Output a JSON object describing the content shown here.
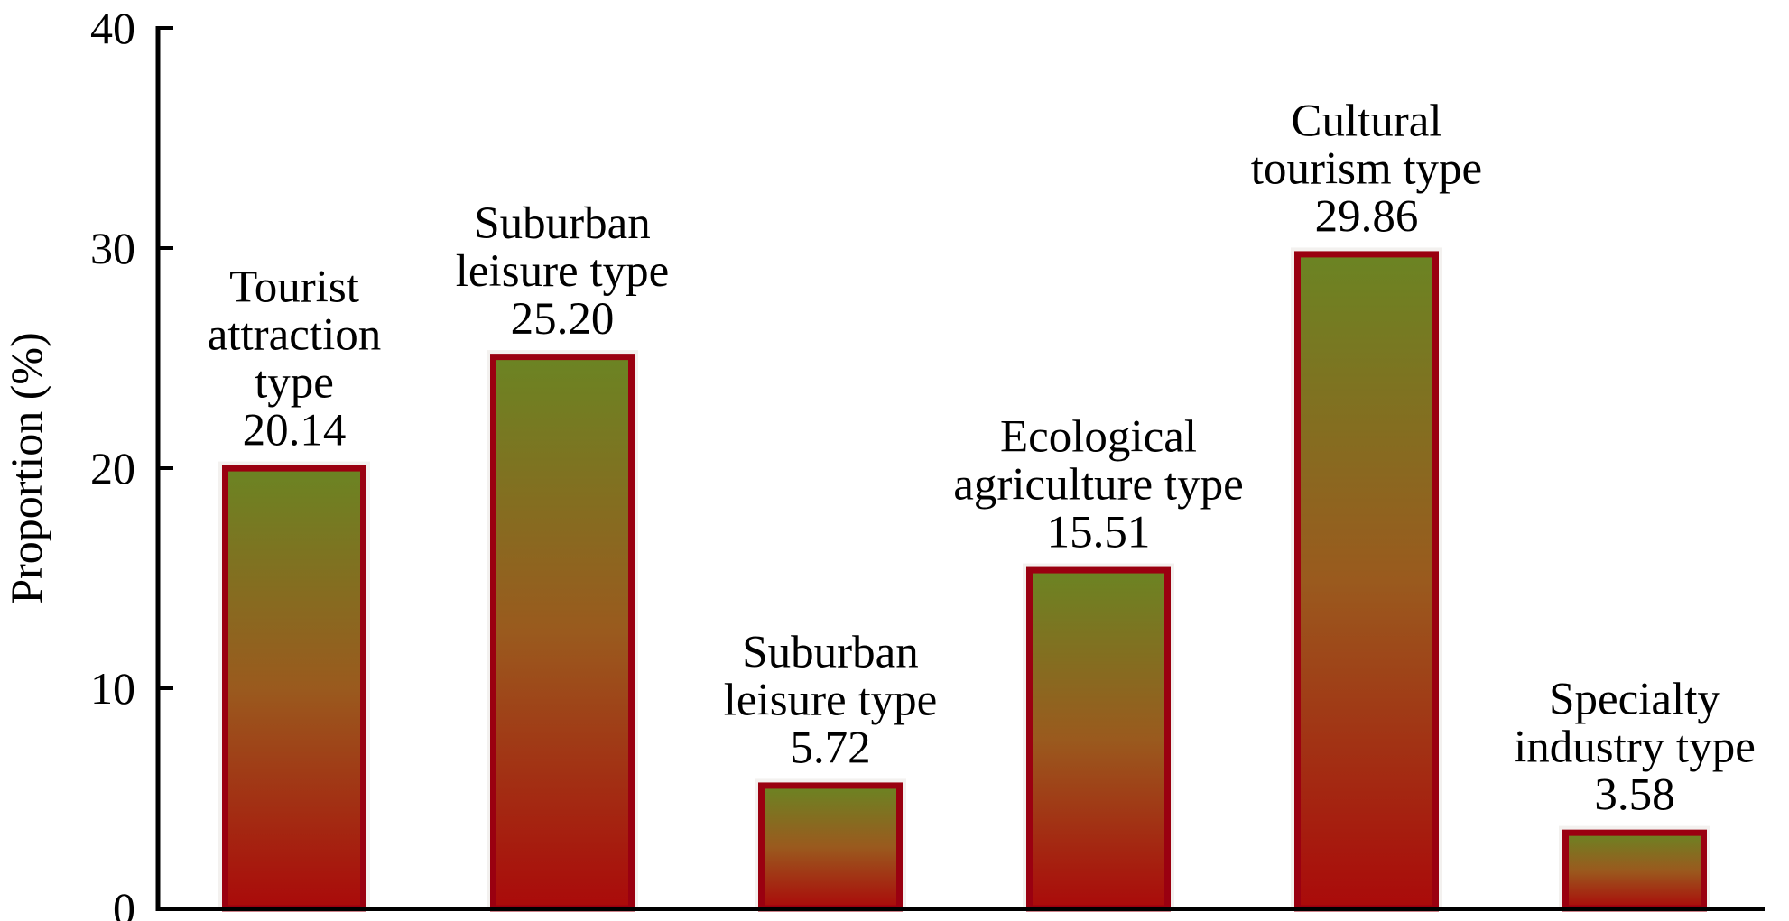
{
  "chart_data": {
    "type": "bar",
    "title": "",
    "xlabel": "",
    "ylabel": "Proportion (%)",
    "ylim": [
      0,
      40
    ],
    "yticks": [
      0,
      10,
      20,
      30,
      40
    ],
    "grid": false,
    "legend": "none",
    "categories": [
      "Tourist attraction type",
      "Suburban leisure type",
      "Suburban leisure type",
      "Ecological agriculture type",
      "Cultural tourism type",
      "Specialty industry type"
    ],
    "label_lines": [
      [
        "Tourist",
        "attraction",
        "type"
      ],
      [
        "Suburban",
        "leisure type"
      ],
      [
        "Suburban",
        "leisure type"
      ],
      [
        "Ecological",
        "agriculture type"
      ],
      [
        "Cultural",
        "tourism type"
      ],
      [
        "Specialty",
        "industry type"
      ]
    ],
    "values": [
      20.14,
      25.2,
      5.72,
      15.51,
      29.86,
      3.58
    ],
    "value_labels": [
      "20.14",
      "25.20",
      "5.72",
      "15.51",
      "29.86",
      "3.58"
    ]
  },
  "colors": {
    "bar_border": "#9a0010",
    "gradient_top": "#6b8423",
    "gradient_mid": "#9a5a1e",
    "gradient_bottom": "#aa0a0a",
    "axis": "#000000"
  }
}
